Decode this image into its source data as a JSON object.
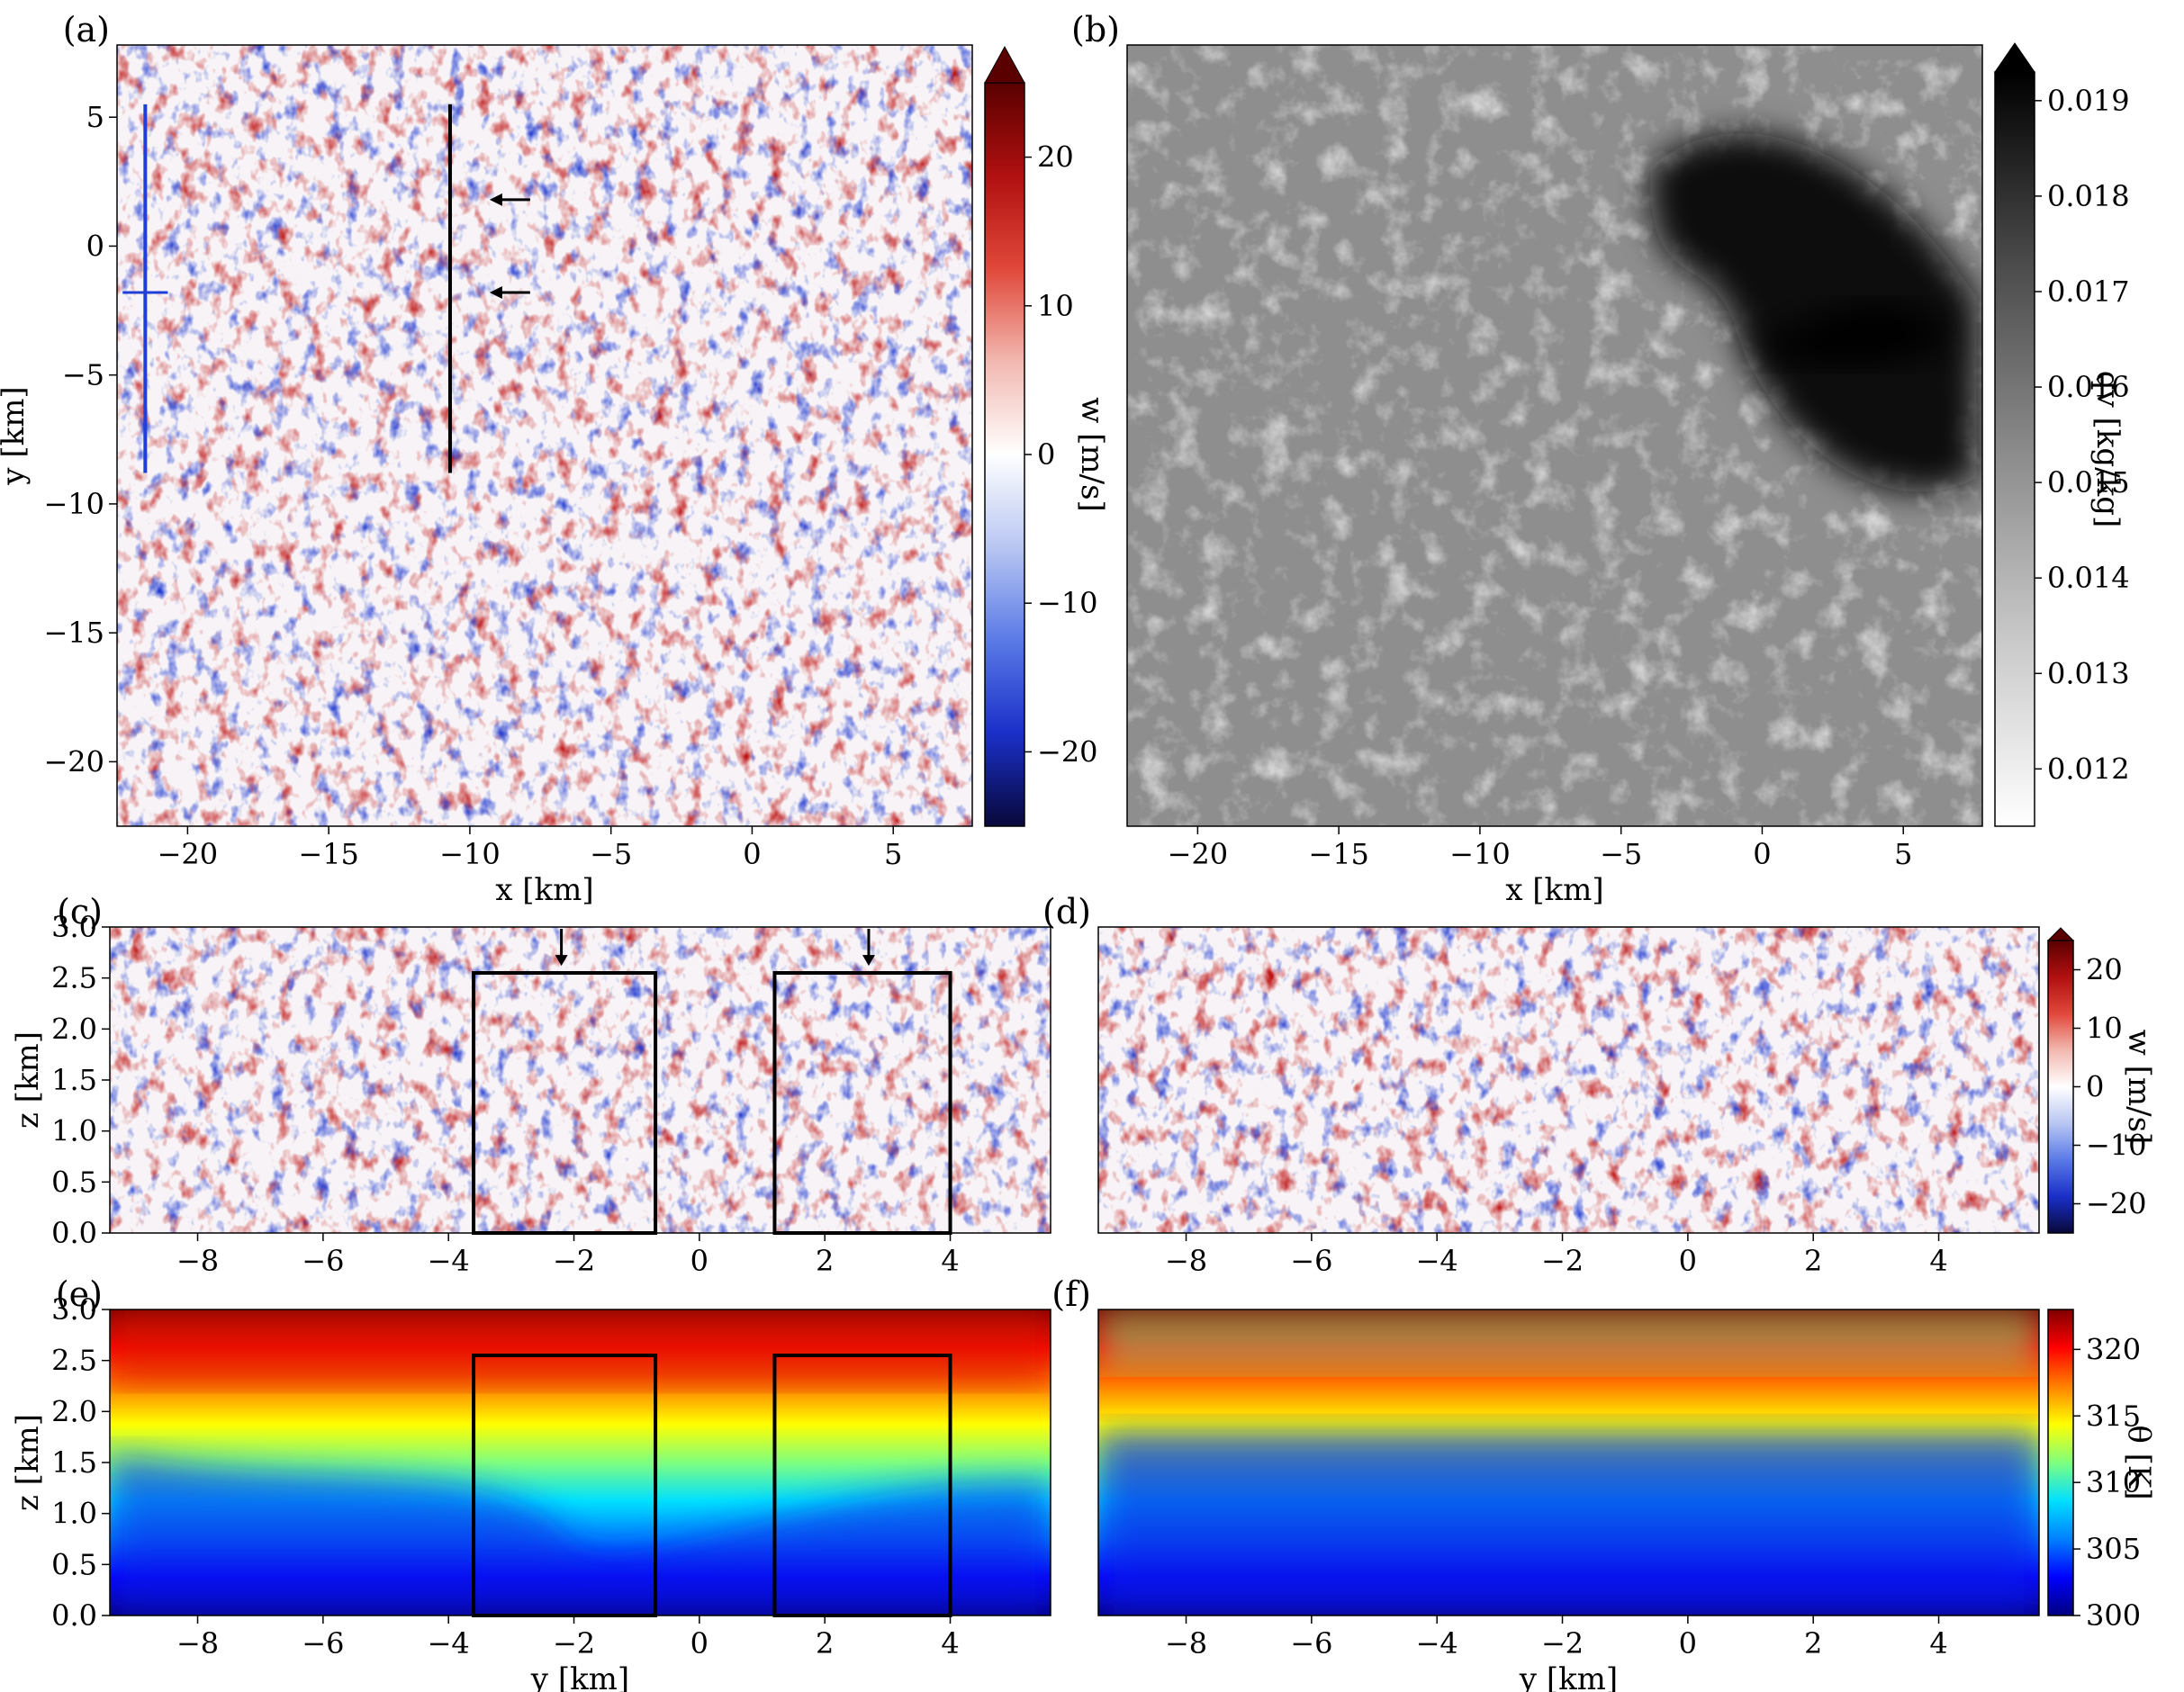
{
  "colors": {
    "w_map": [
      "#08083a",
      "#1a2fc8",
      "#5a7ae6",
      "#b8c6f2",
      "#ffffff",
      "#f2b8b0",
      "#e0483a",
      "#b01010",
      "#5a0000"
    ],
    "qv_map": [
      "#ffffff",
      "#c8c8c8",
      "#8a8a8a",
      "#4a4a4a",
      "#000000"
    ],
    "theta_map": [
      "#00007f",
      "#0000ff",
      "#0080ff",
      "#00e0ff",
      "#7fff7f",
      "#ffff00",
      "#ff8000",
      "#ff0000",
      "#7f0000"
    ],
    "line_blue": "#1f3fd8",
    "line_black": "#000000"
  },
  "chart_data": [
    {
      "id": "a",
      "panel_label": "(a)",
      "type": "heatmap",
      "variable": "w",
      "xlabel": "x [km]",
      "ylabel": "y [km]",
      "xlim": [
        -22.5,
        7.8
      ],
      "ylim": [
        -22.5,
        7.8
      ],
      "xticks": [
        -20,
        -15,
        -10,
        -5,
        0,
        5
      ],
      "yticks": [
        -20,
        -15,
        -10,
        -5,
        0,
        5
      ],
      "xtick_labels": [
        "−20",
        "−15",
        "−10",
        "−5",
        "0",
        "5"
      ],
      "ytick_labels": [
        "−20",
        "−15",
        "−10",
        "−5",
        "0",
        "5"
      ],
      "colorbar": {
        "label": "w [m/s]",
        "range": [
          -25,
          25
        ],
        "extend": "max",
        "ticks": [
          -20,
          -10,
          0,
          10,
          20
        ],
        "tick_labels": [
          "−20",
          "−10",
          "0",
          "10",
          "20"
        ]
      },
      "lines": [
        {
          "color": "blue",
          "x": [
            -21.5,
            -21.5
          ],
          "y": [
            -8.8,
            5.5
          ]
        },
        {
          "color": "black",
          "x": [
            -10.7,
            -10.7
          ],
          "y": [
            -8.8,
            5.5
          ]
        }
      ],
      "arrows": [
        {
          "x": -9.3,
          "y": 1.8
        },
        {
          "x": -9.3,
          "y": -1.8
        }
      ]
    },
    {
      "id": "b",
      "panel_label": "(b)",
      "type": "heatmap",
      "variable": "qv",
      "xlabel": "x [km]",
      "xlim": [
        -22.5,
        7.8
      ],
      "ylim": [
        -22.5,
        7.8
      ],
      "xticks": [
        -20,
        -15,
        -10,
        -5,
        0,
        5
      ],
      "xtick_labels": [
        "−20",
        "−15",
        "−10",
        "−5",
        "0",
        "5"
      ],
      "colorbar": {
        "label": "qv [kg/kg]",
        "range": [
          0.0114,
          0.0193
        ],
        "extend": "max",
        "ticks": [
          0.012,
          0.013,
          0.014,
          0.015,
          0.016,
          0.017,
          0.018,
          0.019
        ],
        "tick_labels": [
          "0.012",
          "0.013",
          "0.014",
          "0.015",
          "0.016",
          "0.017",
          "0.018",
          "0.019"
        ]
      }
    },
    {
      "id": "c",
      "panel_label": "(c)",
      "type": "heatmap",
      "variable": "w",
      "ylabel": "z [km]",
      "xlim": [
        -9.4,
        5.6
      ],
      "ylim": [
        0,
        3.0
      ],
      "xticks": [
        -8,
        -6,
        -4,
        -2,
        0,
        2,
        4
      ],
      "xtick_labels": [
        "−8",
        "−6",
        "−4",
        "−2",
        "0",
        "2",
        "4"
      ],
      "yticks": [
        0,
        0.5,
        1.0,
        1.5,
        2.0,
        2.5,
        3.0
      ],
      "ytick_labels": [
        "0.0",
        "0.5",
        "1.0",
        "1.5",
        "2.0",
        "2.5",
        "3.0"
      ],
      "boxes": [
        {
          "x": [
            -3.6,
            -0.7
          ],
          "z": [
            0,
            2.55
          ]
        },
        {
          "x": [
            1.2,
            4.0
          ],
          "z": [
            0,
            2.55
          ]
        }
      ],
      "arrows": [
        {
          "x": -2.2,
          "z": 2.95
        },
        {
          "x": 2.7,
          "z": 2.95
        }
      ]
    },
    {
      "id": "d",
      "panel_label": "(d)",
      "type": "heatmap",
      "variable": "w",
      "xlim": [
        -9.4,
        5.6
      ],
      "ylim": [
        0,
        3.0
      ],
      "xticks": [
        -8,
        -6,
        -4,
        -2,
        0,
        2,
        4
      ],
      "xtick_labels": [
        "−8",
        "−6",
        "−4",
        "−2",
        "0",
        "2",
        "4"
      ],
      "colorbar": {
        "label": "w [m/s]",
        "range": [
          -25,
          25
        ],
        "extend": "max",
        "ticks": [
          -20,
          -10,
          0,
          10,
          20
        ],
        "tick_labels": [
          "−20",
          "−10",
          "0",
          "10",
          "20"
        ]
      }
    },
    {
      "id": "e",
      "panel_label": "(e)",
      "type": "heatmap",
      "variable": "theta",
      "xlabel": "y [km]",
      "ylabel": "z [km]",
      "xlim": [
        -9.4,
        5.6
      ],
      "ylim": [
        0,
        3.0
      ],
      "xticks": [
        -8,
        -6,
        -4,
        -2,
        0,
        2,
        4
      ],
      "xtick_labels": [
        "−8",
        "−6",
        "−4",
        "−2",
        "0",
        "2",
        "4"
      ],
      "yticks": [
        0,
        0.5,
        1.0,
        1.5,
        2.0,
        2.5,
        3.0
      ],
      "ytick_labels": [
        "0.0",
        "0.5",
        "1.0",
        "1.5",
        "2.0",
        "2.5",
        "3.0"
      ],
      "boxes": [
        {
          "x": [
            -3.6,
            -0.7
          ],
          "z": [
            0,
            2.55
          ]
        },
        {
          "x": [
            1.2,
            4.0
          ],
          "z": [
            0,
            2.55
          ]
        }
      ]
    },
    {
      "id": "f",
      "panel_label": "(f)",
      "type": "heatmap",
      "variable": "theta",
      "xlabel": "y [km]",
      "xlim": [
        -9.4,
        5.6
      ],
      "ylim": [
        0,
        3.0
      ],
      "xticks": [
        -8,
        -6,
        -4,
        -2,
        0,
        2,
        4
      ],
      "xtick_labels": [
        "−8",
        "−6",
        "−4",
        "−2",
        "0",
        "2",
        "4"
      ],
      "colorbar": {
        "label": "θ [K]",
        "range": [
          300,
          323
        ],
        "ticks": [
          300,
          305,
          310,
          315,
          320
        ],
        "tick_labels": [
          "300",
          "305",
          "310",
          "315",
          "320"
        ]
      }
    }
  ]
}
